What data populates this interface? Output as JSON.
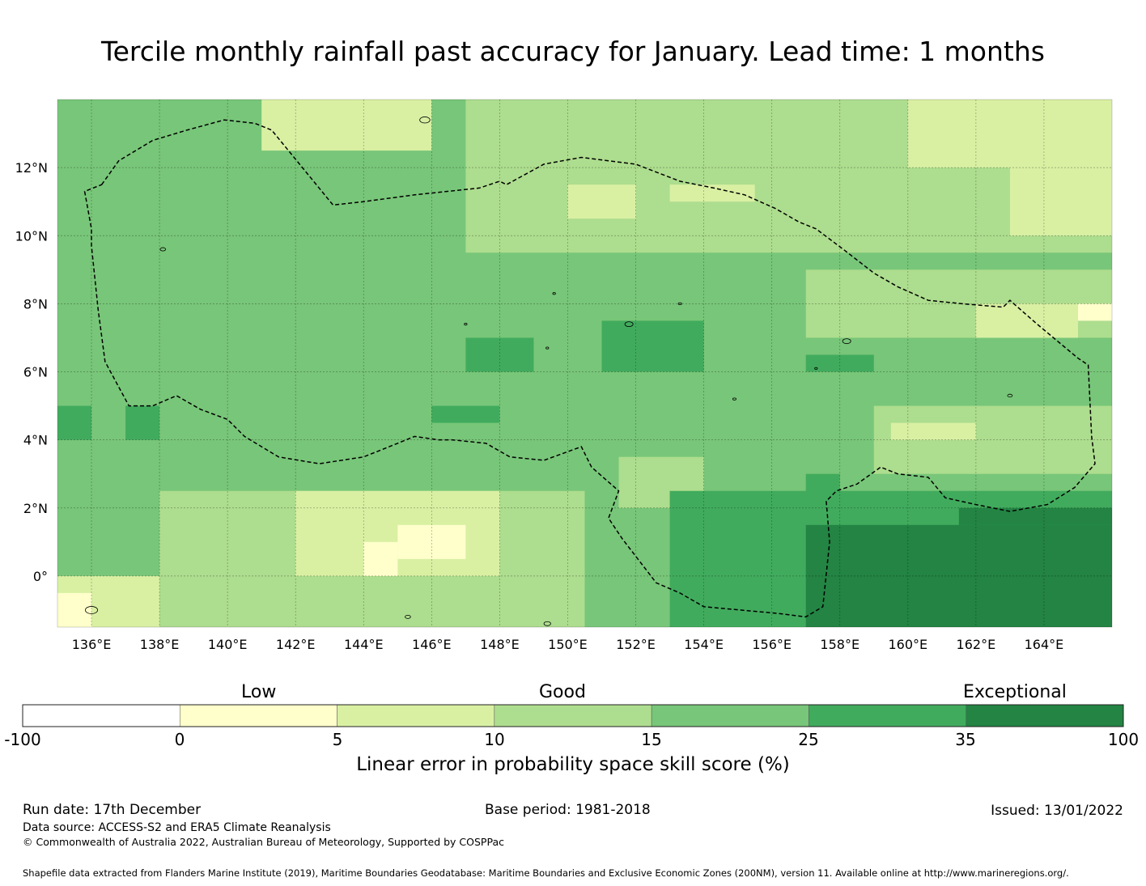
{
  "title": "Tercile monthly rainfall past accuracy for January. Lead time: 1 months",
  "map": {
    "lat_range": [
      -1.5,
      14
    ],
    "lon_range": [
      135,
      166
    ],
    "lat_ticks": [
      {
        "v": 12,
        "label": "12°N"
      },
      {
        "v": 10,
        "label": "10°N"
      },
      {
        "v": 8,
        "label": "8°N"
      },
      {
        "v": 6,
        "label": "6°N"
      },
      {
        "v": 4,
        "label": "4°N"
      },
      {
        "v": 2,
        "label": "2°N"
      },
      {
        "v": 0,
        "label": "0°"
      }
    ],
    "lon_ticks": [
      {
        "v": 136,
        "label": "136°E"
      },
      {
        "v": 138,
        "label": "138°E"
      },
      {
        "v": 140,
        "label": "140°E"
      },
      {
        "v": 142,
        "label": "142°E"
      },
      {
        "v": 144,
        "label": "144°E"
      },
      {
        "v": 146,
        "label": "146°E"
      },
      {
        "v": 148,
        "label": "148°E"
      },
      {
        "v": 150,
        "label": "150°E"
      },
      {
        "v": 152,
        "label": "152°E"
      },
      {
        "v": 154,
        "label": "154°E"
      },
      {
        "v": 156,
        "label": "156°E"
      },
      {
        "v": 158,
        "label": "158°E"
      },
      {
        "v": 160,
        "label": "160°E"
      },
      {
        "v": 162,
        "label": "162°E"
      },
      {
        "v": 164,
        "label": "164°E"
      }
    ],
    "skill_classes": [
      "#ffffcc",
      "#d9f0a3",
      "#addd8e",
      "#78c679",
      "#41ab5d",
      "#238443"
    ],
    "skill_regions": [
      {
        "class": 3,
        "lat": [
          -1.5,
          14
        ],
        "lon": [
          135,
          166
        ]
      },
      {
        "class": 2,
        "lat": [
          9.5,
          14
        ],
        "lon": [
          147,
          166
        ]
      },
      {
        "class": 1,
        "lat": [
          12.5,
          14
        ],
        "lon": [
          141,
          146
        ]
      },
      {
        "class": 1,
        "lat": [
          10.5,
          11.5
        ],
        "lon": [
          150,
          152
        ]
      },
      {
        "class": 1,
        "lat": [
          11,
          11.5
        ],
        "lon": [
          153,
          155.5
        ]
      },
      {
        "class": 1,
        "lat": [
          12,
          14
        ],
        "lon": [
          160,
          166
        ]
      },
      {
        "class": 1,
        "lat": [
          10,
          12
        ],
        "lon": [
          163,
          166
        ]
      },
      {
        "class": 2,
        "lat": [
          -1.5,
          2.5
        ],
        "lon": [
          138,
          150.5
        ]
      },
      {
        "class": 1,
        "lat": [
          0,
          2.5
        ],
        "lon": [
          142,
          148
        ]
      },
      {
        "class": 0,
        "lat": [
          0.5,
          1.5
        ],
        "lon": [
          145,
          147
        ]
      },
      {
        "class": 0,
        "lat": [
          0,
          1
        ],
        "lon": [
          144,
          145
        ]
      },
      {
        "class": 1,
        "lat": [
          -1.5,
          0
        ],
        "lon": [
          135,
          138
        ]
      },
      {
        "class": 0,
        "lat": [
          -1.5,
          -0.5
        ],
        "lon": [
          135,
          136
        ]
      },
      {
        "class": 2,
        "lat": [
          2,
          3.5
        ],
        "lon": [
          151.5,
          154
        ]
      },
      {
        "class": 2,
        "lat": [
          3,
          5
        ],
        "lon": [
          159,
          166
        ]
      },
      {
        "class": 1,
        "lat": [
          4,
          4.5
        ],
        "lon": [
          159.5,
          162
        ]
      },
      {
        "class": 2,
        "lat": [
          7,
          9
        ],
        "lon": [
          157,
          166
        ]
      },
      {
        "class": 1,
        "lat": [
          7,
          8
        ],
        "lon": [
          162,
          165
        ]
      },
      {
        "class": 0,
        "lat": [
          7.5,
          8
        ],
        "lon": [
          165,
          166
        ]
      },
      {
        "class": 4,
        "lat": [
          6,
          7.5
        ],
        "lon": [
          151,
          154
        ]
      },
      {
        "class": 4,
        "lat": [
          6,
          7
        ],
        "lon": [
          147,
          149
        ]
      },
      {
        "class": 4,
        "lat": [
          4,
          5
        ],
        "lon": [
          135,
          136
        ]
      },
      {
        "class": 4,
        "lat": [
          4,
          5
        ],
        "lon": [
          137,
          138
        ]
      },
      {
        "class": 4,
        "lat": [
          4.5,
          5
        ],
        "lon": [
          146,
          148
        ]
      },
      {
        "class": 4,
        "lat": [
          6,
          6.5
        ],
        "lon": [
          157,
          159
        ]
      },
      {
        "class": 4,
        "lat": [
          2,
          3
        ],
        "lon": [
          157,
          158
        ]
      },
      {
        "class": 4,
        "lat": [
          -1.5,
          2.5
        ],
        "lon": [
          153,
          166
        ]
      },
      {
        "class": 5,
        "lat": [
          -1.5,
          1.5
        ],
        "lon": [
          157,
          166
        ]
      },
      {
        "class": 5,
        "lat": [
          1.5,
          2
        ],
        "lon": [
          161.5,
          166
        ]
      }
    ],
    "eez_boundary": [
      [
        136.3,
        11.5
      ],
      [
        136.8,
        12.2
      ],
      [
        137.8,
        12.8
      ],
      [
        138.8,
        13.1
      ],
      [
        139.9,
        13.4
      ],
      [
        140.8,
        13.3
      ],
      [
        141.3,
        13.1
      ],
      [
        142.2,
        12.0
      ],
      [
        143.1,
        10.9
      ],
      [
        144.0,
        11.0
      ],
      [
        145.5,
        11.2
      ],
      [
        147.4,
        11.4
      ],
      [
        148.0,
        11.6
      ],
      [
        148.2,
        11.5
      ],
      [
        149.3,
        12.1
      ],
      [
        150.4,
        12.3
      ],
      [
        151.2,
        12.2
      ],
      [
        152.0,
        12.1
      ],
      [
        153.3,
        11.6
      ],
      [
        154.3,
        11.4
      ],
      [
        155.2,
        11.2
      ],
      [
        156.1,
        10.8
      ],
      [
        156.8,
        10.4
      ],
      [
        157.3,
        10.2
      ],
      [
        158.1,
        9.6
      ],
      [
        159.0,
        8.9
      ],
      [
        159.7,
        8.5
      ],
      [
        160.6,
        8.1
      ],
      [
        161.6,
        8.0
      ],
      [
        162.8,
        7.9
      ],
      [
        163.0,
        8.1
      ],
      [
        163.8,
        7.4
      ],
      [
        165.0,
        6.4
      ],
      [
        165.3,
        6.2
      ],
      [
        165.4,
        4.1
      ],
      [
        165.5,
        3.3
      ],
      [
        164.9,
        2.6
      ],
      [
        164.1,
        2.1
      ],
      [
        163.0,
        1.9
      ],
      [
        162.0,
        2.1
      ],
      [
        161.1,
        2.3
      ],
      [
        160.6,
        2.9
      ],
      [
        159.7,
        3.0
      ],
      [
        159.2,
        3.2
      ],
      [
        158.5,
        2.7
      ],
      [
        157.9,
        2.5
      ],
      [
        157.6,
        2.2
      ],
      [
        157.7,
        1.0
      ],
      [
        157.5,
        -0.9
      ],
      [
        157.0,
        -1.2
      ],
      [
        156.2,
        -1.1
      ],
      [
        154.0,
        -0.9
      ],
      [
        153.3,
        -0.5
      ],
      [
        152.6,
        -0.2
      ],
      [
        151.6,
        1.1
      ],
      [
        151.2,
        1.7
      ],
      [
        151.5,
        2.5
      ],
      [
        150.7,
        3.2
      ],
      [
        150.4,
        3.8
      ],
      [
        149.3,
        3.4
      ],
      [
        148.3,
        3.5
      ],
      [
        147.6,
        3.9
      ],
      [
        146.6,
        4.0
      ],
      [
        146.2,
        4.0
      ],
      [
        145.5,
        4.1
      ],
      [
        145.0,
        3.9
      ],
      [
        144.0,
        3.5
      ],
      [
        142.7,
        3.3
      ],
      [
        141.5,
        3.5
      ],
      [
        140.5,
        4.1
      ],
      [
        140.0,
        4.6
      ],
      [
        139.2,
        4.9
      ],
      [
        138.5,
        5.3
      ],
      [
        137.8,
        5.0
      ],
      [
        137.1,
        5.0
      ],
      [
        136.4,
        6.3
      ],
      [
        136.2,
        7.8
      ],
      [
        136.0,
        9.7
      ],
      [
        136.0,
        10.2
      ],
      [
        135.8,
        11.3
      ]
    ],
    "islands": [
      {
        "lon": 145.8,
        "lat": 13.4,
        "r": 0.15
      },
      {
        "lon": 138.1,
        "lat": 9.6,
        "r": 0.08
      },
      {
        "lon": 151.8,
        "lat": 7.4,
        "r": 0.12
      },
      {
        "lon": 158.2,
        "lat": 6.9,
        "r": 0.12
      },
      {
        "lon": 153.3,
        "lat": 8.0,
        "r": 0.05
      },
      {
        "lon": 163.0,
        "lat": 5.3,
        "r": 0.07
      },
      {
        "lon": 154.9,
        "lat": 5.2,
        "r": 0.05
      },
      {
        "lon": 149.6,
        "lat": 8.3,
        "r": 0.04
      },
      {
        "lon": 149.4,
        "lat": 6.7,
        "r": 0.04
      },
      {
        "lon": 147.0,
        "lat": 7.4,
        "r": 0.04
      },
      {
        "lon": 157.3,
        "lat": 6.1,
        "r": 0.04
      },
      {
        "lon": 149.4,
        "lat": -1.4,
        "r": 0.1
      },
      {
        "lon": 136.0,
        "lat": -1.0,
        "r": 0.18
      },
      {
        "lon": 145.3,
        "lat": -1.2,
        "r": 0.08
      }
    ]
  },
  "legend": {
    "headings": [
      "Low",
      "Good",
      "Exceptional"
    ],
    "colors": [
      "#ffffff",
      "#ffffcc",
      "#d9f0a3",
      "#addd8e",
      "#78c679",
      "#41ab5d",
      "#238443"
    ],
    "ticks": [
      "-100",
      "0",
      "5",
      "10",
      "15",
      "25",
      "35",
      "100"
    ],
    "label": "Linear error in probability space skill score (%)"
  },
  "footer": {
    "run_date": "Run date: 17th December",
    "base_period": "Base period: 1981-2018",
    "issued": "Issued: 13/01/2022",
    "data_source": "Data source: ACCESS-S2 and ERA5 Climate Reanalysis",
    "copyright": "© Commonwealth of Australia 2022, Australian Bureau of Meteorology, Supported by COSPPac",
    "shapefile": "Shapefile data extracted from Flanders Marine Institute (2019), Maritime Boundaries Geodatabase: Maritime Boundaries and Exclusive Economic Zones (200NM), version 11. Available online at http://www.marineregions.org/."
  }
}
